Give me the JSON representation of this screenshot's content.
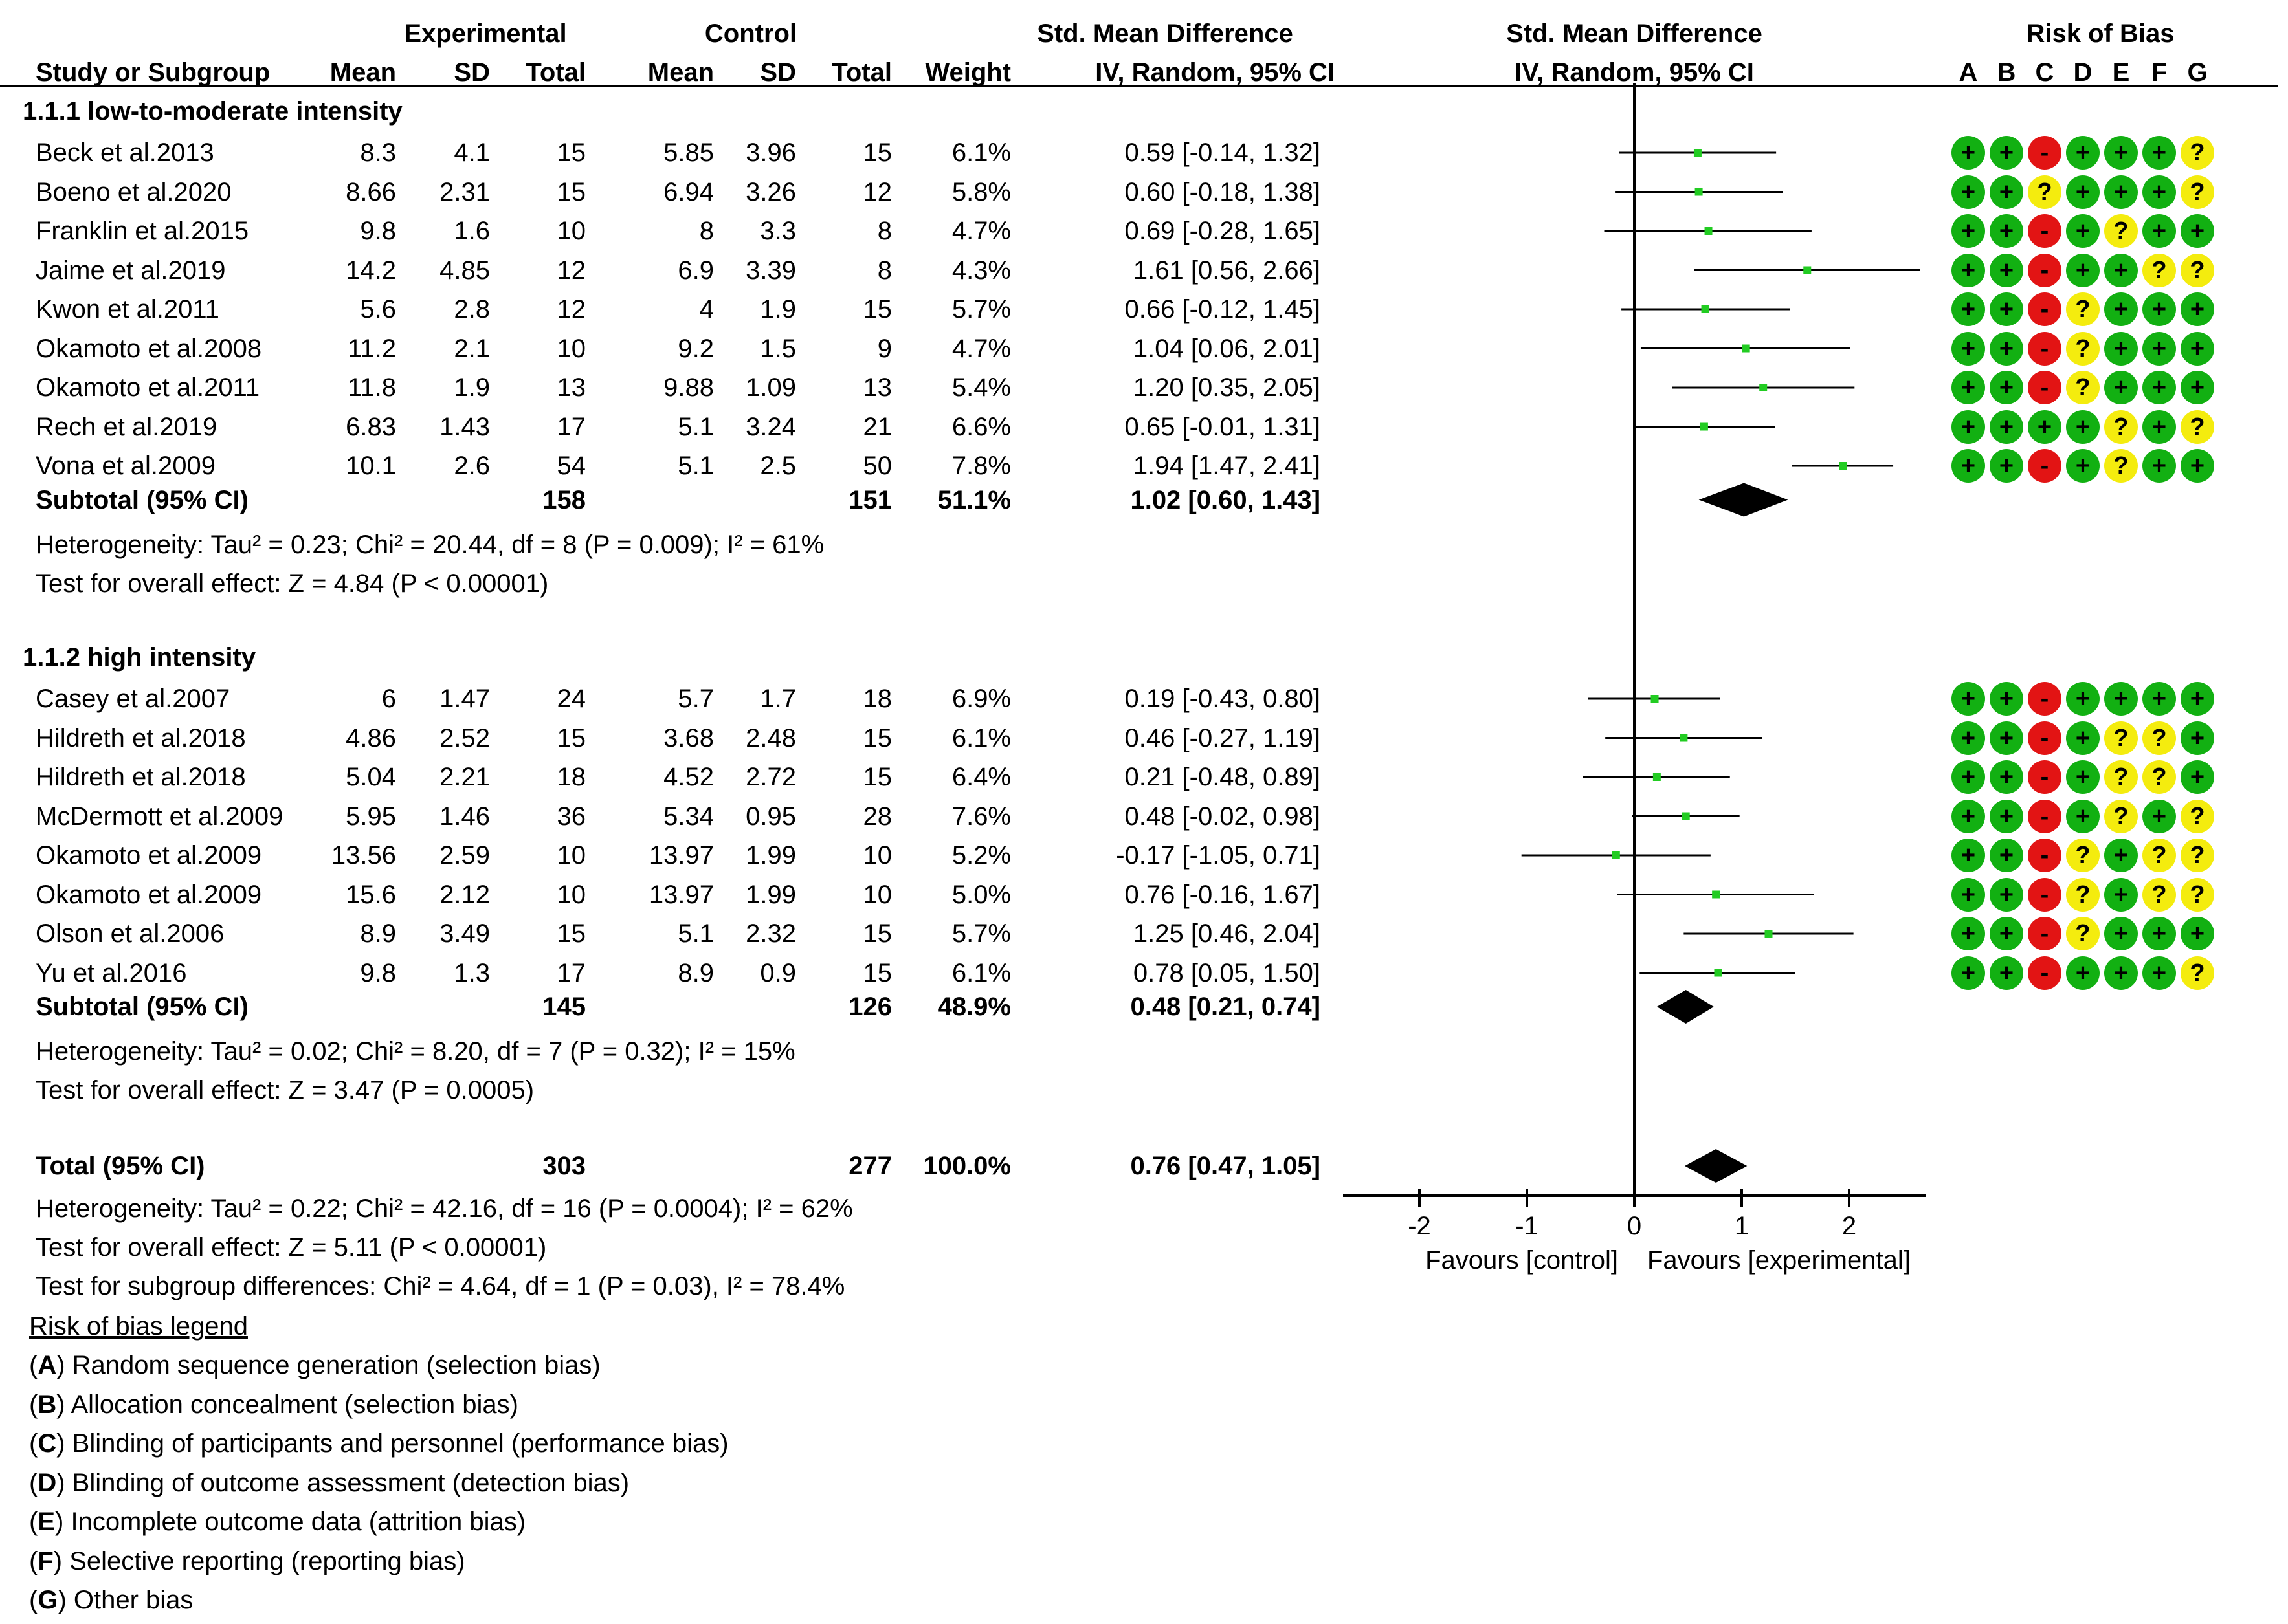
{
  "headers": {
    "study": "Study or Subgroup",
    "experimental": "Experimental",
    "control": "Control",
    "mean": "Mean",
    "sd": "SD",
    "total": "Total",
    "weight": "Weight",
    "smd_title": "Std. Mean Difference",
    "smd_method": "IV, Random, 95% CI",
    "plot_title": "Std. Mean Difference",
    "plot_method": "IV, Random, 95% CI",
    "rob_title": "Risk of Bias",
    "rob_cols": [
      "A",
      "B",
      "C",
      "D",
      "E",
      "F",
      "G"
    ]
  },
  "groups": [
    {
      "title": "1.1.1 low-to-moderate intensity",
      "studies": [
        {
          "name": "Beck et al.2013",
          "e_mean": "8.3",
          "e_sd": "4.1",
          "e_total": "15",
          "c_mean": "5.85",
          "c_sd": "3.96",
          "c_total": "15",
          "weight": "6.1%",
          "ci_text": "0.59 [-0.14, 1.32]",
          "smd": 0.59,
          "lo": -0.14,
          "hi": 1.32,
          "rob": [
            "+",
            "+",
            "-",
            "+",
            "+",
            "+",
            "?"
          ]
        },
        {
          "name": "Boeno et al.2020",
          "e_mean": "8.66",
          "e_sd": "2.31",
          "e_total": "15",
          "c_mean": "6.94",
          "c_sd": "3.26",
          "c_total": "12",
          "weight": "5.8%",
          "ci_text": "0.60 [-0.18, 1.38]",
          "smd": 0.6,
          "lo": -0.18,
          "hi": 1.38,
          "rob": [
            "+",
            "+",
            "?",
            "+",
            "+",
            "+",
            "?"
          ]
        },
        {
          "name": "Franklin et al.2015",
          "e_mean": "9.8",
          "e_sd": "1.6",
          "e_total": "10",
          "c_mean": "8",
          "c_sd": "3.3",
          "c_total": "8",
          "weight": "4.7%",
          "ci_text": "0.69 [-0.28, 1.65]",
          "smd": 0.69,
          "lo": -0.28,
          "hi": 1.65,
          "rob": [
            "+",
            "+",
            "-",
            "+",
            "?",
            "+",
            "+"
          ]
        },
        {
          "name": "Jaime et al.2019",
          "e_mean": "14.2",
          "e_sd": "4.85",
          "e_total": "12",
          "c_mean": "6.9",
          "c_sd": "3.39",
          "c_total": "8",
          "weight": "4.3%",
          "ci_text": "1.61 [0.56, 2.66]",
          "smd": 1.61,
          "lo": 0.56,
          "hi": 2.66,
          "rob": [
            "+",
            "+",
            "-",
            "+",
            "+",
            "?",
            "?"
          ]
        },
        {
          "name": "Kwon et al.2011",
          "e_mean": "5.6",
          "e_sd": "2.8",
          "e_total": "12",
          "c_mean": "4",
          "c_sd": "1.9",
          "c_total": "15",
          "weight": "5.7%",
          "ci_text": "0.66 [-0.12, 1.45]",
          "smd": 0.66,
          "lo": -0.12,
          "hi": 1.45,
          "rob": [
            "+",
            "+",
            "-",
            "?",
            "+",
            "+",
            "+"
          ]
        },
        {
          "name": "Okamoto et al.2008",
          "e_mean": "11.2",
          "e_sd": "2.1",
          "e_total": "10",
          "c_mean": "9.2",
          "c_sd": "1.5",
          "c_total": "9",
          "weight": "4.7%",
          "ci_text": "1.04 [0.06, 2.01]",
          "smd": 1.04,
          "lo": 0.06,
          "hi": 2.01,
          "rob": [
            "+",
            "+",
            "-",
            "?",
            "+",
            "+",
            "+"
          ]
        },
        {
          "name": "Okamoto et al.2011",
          "e_mean": "11.8",
          "e_sd": "1.9",
          "e_total": "13",
          "c_mean": "9.88",
          "c_sd": "1.09",
          "c_total": "13",
          "weight": "5.4%",
          "ci_text": "1.20 [0.35, 2.05]",
          "smd": 1.2,
          "lo": 0.35,
          "hi": 2.05,
          "rob": [
            "+",
            "+",
            "-",
            "?",
            "+",
            "+",
            "+"
          ]
        },
        {
          "name": "Rech et al.2019",
          "e_mean": "6.83",
          "e_sd": "1.43",
          "e_total": "17",
          "c_mean": "5.1",
          "c_sd": "3.24",
          "c_total": "21",
          "weight": "6.6%",
          "ci_text": "0.65 [-0.01, 1.31]",
          "smd": 0.65,
          "lo": -0.01,
          "hi": 1.31,
          "rob": [
            "+",
            "+",
            "+",
            "+",
            "?",
            "+",
            "?"
          ]
        },
        {
          "name": "Vona et al.2009",
          "e_mean": "10.1",
          "e_sd": "2.6",
          "e_total": "54",
          "c_mean": "5.1",
          "c_sd": "2.5",
          "c_total": "50",
          "weight": "7.8%",
          "ci_text": "1.94 [1.47, 2.41]",
          "smd": 1.94,
          "lo": 1.47,
          "hi": 2.41,
          "rob": [
            "+",
            "+",
            "-",
            "+",
            "?",
            "+",
            "+"
          ]
        }
      ],
      "subtotal": {
        "label": "Subtotal (95% CI)",
        "e_total": "158",
        "c_total": "151",
        "weight": "51.1%",
        "ci_text": "1.02 [0.60, 1.43]",
        "smd": 1.02,
        "lo": 0.6,
        "hi": 1.43
      },
      "heterogeneity": "Heterogeneity: Tau² = 0.23; Chi² = 20.44, df = 8 (P = 0.009); I² = 61%",
      "overall": "Test for overall effect: Z = 4.84 (P < 0.00001)"
    },
    {
      "title": "1.1.2 high intensity",
      "studies": [
        {
          "name": "Casey et al.2007",
          "e_mean": "6",
          "e_sd": "1.47",
          "e_total": "24",
          "c_mean": "5.7",
          "c_sd": "1.7",
          "c_total": "18",
          "weight": "6.9%",
          "ci_text": "0.19 [-0.43, 0.80]",
          "smd": 0.19,
          "lo": -0.43,
          "hi": 0.8,
          "rob": [
            "+",
            "+",
            "-",
            "+",
            "+",
            "+",
            "+"
          ]
        },
        {
          "name": "Hildreth et al.2018",
          "e_mean": "4.86",
          "e_sd": "2.52",
          "e_total": "15",
          "c_mean": "3.68",
          "c_sd": "2.48",
          "c_total": "15",
          "weight": "6.1%",
          "ci_text": "0.46 [-0.27, 1.19]",
          "smd": 0.46,
          "lo": -0.27,
          "hi": 1.19,
          "rob": [
            "+",
            "+",
            "-",
            "+",
            "?",
            "?",
            "+"
          ]
        },
        {
          "name": "Hildreth et al.2018",
          "e_mean": "5.04",
          "e_sd": "2.21",
          "e_total": "18",
          "c_mean": "4.52",
          "c_sd": "2.72",
          "c_total": "15",
          "weight": "6.4%",
          "ci_text": "0.21 [-0.48, 0.89]",
          "smd": 0.21,
          "lo": -0.48,
          "hi": 0.89,
          "rob": [
            "+",
            "+",
            "-",
            "+",
            "?",
            "?",
            "+"
          ]
        },
        {
          "name": "McDermott et al.2009",
          "e_mean": "5.95",
          "e_sd": "1.46",
          "e_total": "36",
          "c_mean": "5.34",
          "c_sd": "0.95",
          "c_total": "28",
          "weight": "7.6%",
          "ci_text": "0.48 [-0.02, 0.98]",
          "smd": 0.48,
          "lo": -0.02,
          "hi": 0.98,
          "rob": [
            "+",
            "+",
            "-",
            "+",
            "?",
            "+",
            "?"
          ]
        },
        {
          "name": "Okamoto et al.2009",
          "e_mean": "13.56",
          "e_sd": "2.59",
          "e_total": "10",
          "c_mean": "13.97",
          "c_sd": "1.99",
          "c_total": "10",
          "weight": "5.2%",
          "ci_text": "-0.17 [-1.05, 0.71]",
          "smd": -0.17,
          "lo": -1.05,
          "hi": 0.71,
          "rob": [
            "+",
            "+",
            "-",
            "?",
            "+",
            "?",
            "?"
          ]
        },
        {
          "name": "Okamoto et al.2009",
          "e_mean": "15.6",
          "e_sd": "2.12",
          "e_total": "10",
          "c_mean": "13.97",
          "c_sd": "1.99",
          "c_total": "10",
          "weight": "5.0%",
          "ci_text": "0.76 [-0.16, 1.67]",
          "smd": 0.76,
          "lo": -0.16,
          "hi": 1.67,
          "rob": [
            "+",
            "+",
            "-",
            "?",
            "+",
            "?",
            "?"
          ]
        },
        {
          "name": "Olson et al.2006",
          "e_mean": "8.9",
          "e_sd": "3.49",
          "e_total": "15",
          "c_mean": "5.1",
          "c_sd": "2.32",
          "c_total": "15",
          "weight": "5.7%",
          "ci_text": "1.25 [0.46, 2.04]",
          "smd": 1.25,
          "lo": 0.46,
          "hi": 2.04,
          "rob": [
            "+",
            "+",
            "-",
            "?",
            "+",
            "+",
            "+"
          ]
        },
        {
          "name": "Yu et al.2016",
          "e_mean": "9.8",
          "e_sd": "1.3",
          "e_total": "17",
          "c_mean": "8.9",
          "c_sd": "0.9",
          "c_total": "15",
          "weight": "6.1%",
          "ci_text": "0.78 [0.05, 1.50]",
          "smd": 0.78,
          "lo": 0.05,
          "hi": 1.5,
          "rob": [
            "+",
            "+",
            "-",
            "+",
            "+",
            "+",
            "?"
          ]
        }
      ],
      "subtotal": {
        "label": "Subtotal (95% CI)",
        "e_total": "145",
        "c_total": "126",
        "weight": "48.9%",
        "ci_text": "0.48 [0.21, 0.74]",
        "smd": 0.48,
        "lo": 0.21,
        "hi": 0.74
      },
      "heterogeneity": "Heterogeneity: Tau² = 0.02; Chi² = 8.20, df = 7 (P = 0.32); I² = 15%",
      "overall": "Test for overall effect: Z = 3.47 (P = 0.0005)"
    }
  ],
  "total": {
    "label": "Total (95% CI)",
    "e_total": "303",
    "c_total": "277",
    "weight": "100.0%",
    "ci_text": "0.76 [0.47, 1.05]",
    "smd": 0.76,
    "lo": 0.47,
    "hi": 1.05
  },
  "total_heterogeneity": "Heterogeneity: Tau² = 0.22; Chi² = 42.16, df = 16 (P = 0.0004); I² = 62%",
  "total_overall": "Test for overall effect: Z = 5.11 (P < 0.00001)",
  "subgroup_diff": "Test for subgroup differences: Chi² = 4.64, df = 1 (P = 0.03), I² = 78.4%",
  "axis": {
    "ticks": [
      "-2",
      "-1",
      "0",
      "1",
      "2"
    ],
    "favours_left": "Favours [control]",
    "favours_right": "Favours [experimental]"
  },
  "legend": {
    "title": "Risk of bias legend",
    "items": [
      {
        "key": "A",
        "text": "Random sequence generation (selection bias)"
      },
      {
        "key": "B",
        "text": "Allocation concealment (selection bias)"
      },
      {
        "key": "C",
        "text": "Blinding of participants and personnel (performance bias)"
      },
      {
        "key": "D",
        "text": "Blinding of outcome assessment (detection bias)"
      },
      {
        "key": "E",
        "text": "Incomplete outcome data (attrition bias)"
      },
      {
        "key": "F",
        "text": "Selective reporting (reporting bias)"
      },
      {
        "key": "G",
        "text": "Other bias"
      }
    ]
  },
  "colors": {
    "low": "#12b012",
    "high": "#e21414",
    "unclear": "#f4ec0e",
    "point": "#22cc22"
  },
  "chart_data": {
    "type": "forest",
    "title": "Std. Mean Difference IV, Random, 95% CI",
    "xlabel_left": "Favours [control]",
    "xlabel_right": "Favours [experimental]",
    "xlim": [
      -2.8,
      2.8
    ],
    "xticks": [
      -2,
      -1,
      0,
      1,
      2
    ]
  }
}
